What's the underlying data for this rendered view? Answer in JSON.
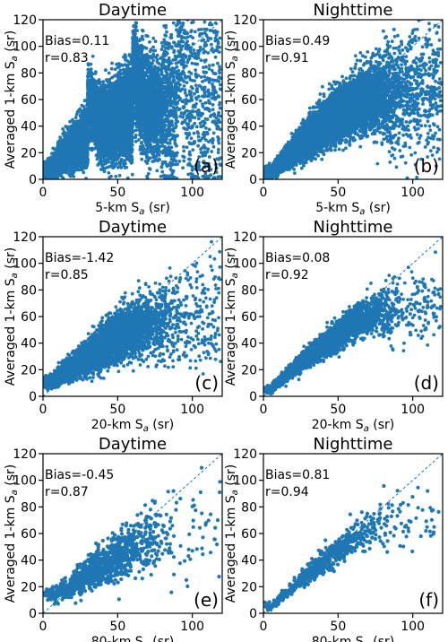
{
  "chart_data": [
    {
      "panel": "(a)",
      "type": "scatter",
      "title": "Daytime",
      "xlabel": "5-km",
      "ylabel": "Averaged 1-km",
      "bias": "Bias=0.11",
      "r": "r=0.83",
      "xlim": [
        0,
        120
      ],
      "ylim": [
        0,
        120
      ],
      "xticks": [
        0,
        50,
        100
      ],
      "yticks": [
        0,
        20,
        40,
        60,
        80,
        100,
        120
      ],
      "one_to_one_line": true,
      "density": "very dense, ~14000 points",
      "spread": "broad",
      "sample_points": [
        [
          5,
          5
        ],
        [
          10,
          14
        ],
        [
          20,
          25
        ],
        [
          30,
          32
        ],
        [
          40,
          40
        ],
        [
          50,
          45
        ],
        [
          60,
          50
        ],
        [
          70,
          52
        ],
        [
          80,
          55
        ],
        [
          90,
          56
        ],
        [
          100,
          58
        ],
        [
          110,
          60
        ],
        [
          30,
          60
        ],
        [
          60,
          85
        ],
        [
          90,
          100
        ]
      ]
    },
    {
      "panel": "(b)",
      "type": "scatter",
      "title": "Nighttime",
      "xlabel": "5-km",
      "ylabel": "Averaged 1-km",
      "bias": "Bias=0.49",
      "r": "r=0.91",
      "xlim": [
        0,
        120
      ],
      "ylim": [
        0,
        120
      ],
      "xticks": [
        0,
        50,
        100
      ],
      "yticks": [
        0,
        20,
        40,
        60,
        80,
        100,
        120
      ],
      "one_to_one_line": true,
      "density": "very dense, ~12000 points",
      "spread": "moderate",
      "sample_points": [
        [
          5,
          5
        ],
        [
          10,
          11
        ],
        [
          20,
          21
        ],
        [
          30,
          31
        ],
        [
          40,
          40
        ],
        [
          50,
          48
        ],
        [
          60,
          55
        ],
        [
          70,
          60
        ],
        [
          80,
          63
        ],
        [
          90,
          66
        ],
        [
          100,
          68
        ],
        [
          110,
          70
        ]
      ]
    },
    {
      "panel": "(c)",
      "type": "scatter",
      "title": "Daytime",
      "xlabel": "20-km",
      "ylabel": "Averaged 1-km",
      "bias": "Bias=-1.42",
      "r": "r=0.85",
      "xlim": [
        0,
        120
      ],
      "ylim": [
        0,
        120
      ],
      "xticks": [
        0,
        50,
        100
      ],
      "yticks": [
        0,
        20,
        40,
        60,
        80,
        100,
        120
      ],
      "one_to_one_line": true,
      "density": "dense, ~5000 points",
      "spread": "moderate",
      "sample_points": [
        [
          5,
          10
        ],
        [
          10,
          15
        ],
        [
          20,
          22
        ],
        [
          30,
          30
        ],
        [
          40,
          38
        ],
        [
          50,
          44
        ],
        [
          60,
          50
        ],
        [
          70,
          55
        ],
        [
          80,
          57
        ],
        [
          90,
          58
        ],
        [
          100,
          58
        ],
        [
          110,
          60
        ]
      ]
    },
    {
      "panel": "(d)",
      "type": "scatter",
      "title": "Nighttime",
      "xlabel": "20-km",
      "ylabel": "Averaged 1-km",
      "bias": "Bias=0.08",
      "r": "r=0.92",
      "xlim": [
        0,
        120
      ],
      "ylim": [
        0,
        120
      ],
      "xticks": [
        0,
        50,
        100
      ],
      "yticks": [
        0,
        20,
        40,
        60,
        80,
        100,
        120
      ],
      "one_to_one_line": true,
      "density": "dense, ~3500 points",
      "spread": "narrow",
      "sample_points": [
        [
          5,
          5
        ],
        [
          10,
          10
        ],
        [
          20,
          20
        ],
        [
          30,
          30
        ],
        [
          40,
          38
        ],
        [
          50,
          46
        ],
        [
          60,
          55
        ],
        [
          70,
          60
        ],
        [
          80,
          63
        ],
        [
          90,
          66
        ],
        [
          100,
          68
        ],
        [
          110,
          70
        ]
      ]
    },
    {
      "panel": "(e)",
      "type": "scatter",
      "title": "Daytime",
      "xlabel": "80-km",
      "ylabel": "Averaged 1-km",
      "bias": "Bias=-0.45",
      "r": "r=0.87",
      "xlim": [
        0,
        120
      ],
      "ylim": [
        0,
        120
      ],
      "xticks": [
        0,
        50,
        100
      ],
      "yticks": [
        0,
        20,
        40,
        60,
        80,
        100,
        120
      ],
      "one_to_one_line": true,
      "density": "moderate, ~1200 points",
      "spread": "moderate",
      "sample_points": [
        [
          8,
          15
        ],
        [
          15,
          18
        ],
        [
          25,
          25
        ],
        [
          35,
          33
        ],
        [
          45,
          40
        ],
        [
          55,
          47
        ],
        [
          65,
          52
        ],
        [
          75,
          56
        ],
        [
          85,
          58
        ],
        [
          95,
          60
        ],
        [
          110,
          62
        ]
      ]
    },
    {
      "panel": "(f)",
      "type": "scatter",
      "title": "Nighttime",
      "xlabel": "80-km",
      "ylabel": "Averaged 1-km",
      "bias": "Bias=0.81",
      "r": "r=0.94",
      "xlim": [
        0,
        120
      ],
      "ylim": [
        0,
        120
      ],
      "xticks": [
        0,
        50,
        100
      ],
      "yticks": [
        0,
        20,
        40,
        60,
        80,
        100,
        120
      ],
      "one_to_one_line": true,
      "density": "sparse, ~700 points",
      "spread": "narrow",
      "sample_points": [
        [
          5,
          5
        ],
        [
          10,
          10
        ],
        [
          20,
          20
        ],
        [
          30,
          30
        ],
        [
          40,
          38
        ],
        [
          50,
          47
        ],
        [
          60,
          55
        ],
        [
          70,
          62
        ],
        [
          90,
          70
        ],
        [
          105,
          70
        ]
      ]
    }
  ],
  "colors": {
    "points": "#1f77b4",
    "reference_line": "#1f77b4",
    "axes": "#000000"
  },
  "symbols": {
    "S": "S",
    "a": "a",
    "unit": "(sr)"
  }
}
